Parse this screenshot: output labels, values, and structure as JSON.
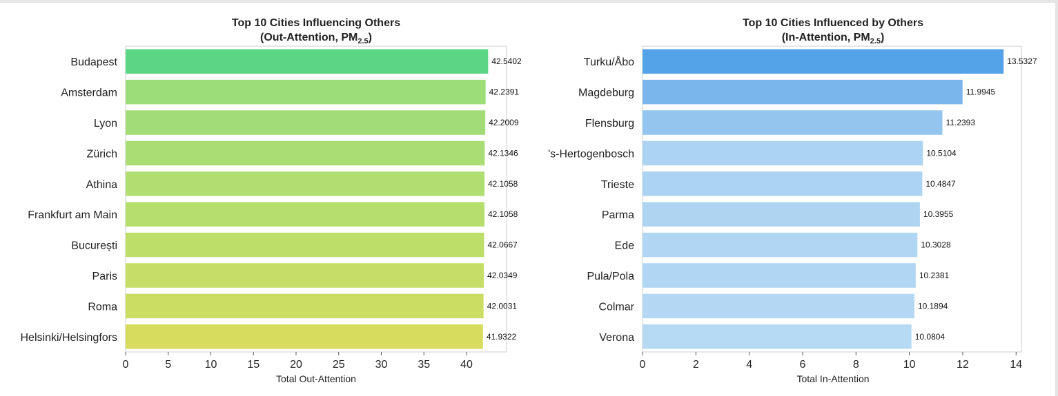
{
  "chart_data": [
    {
      "type": "bar",
      "orientation": "horizontal",
      "title": "Top 10 Cities Influencing Others",
      "subtitle_prefix": "(Out-Attention, PM",
      "subtitle_sub": "2.5",
      "subtitle_suffix": ")",
      "xlabel": "Total Out-Attention",
      "xlim": [
        0,
        44.7
      ],
      "xticks": [
        "0",
        "5",
        "10",
        "15",
        "20",
        "25",
        "30",
        "35",
        "40"
      ],
      "xtick_values": [
        0,
        5,
        10,
        15,
        20,
        25,
        30,
        35,
        40
      ],
      "grid": false,
      "categories": [
        "Budapest",
        "Amsterdam",
        "Lyon",
        "Zürich",
        "Athina",
        "Frankfurt am Main",
        "București",
        "Paris",
        "Roma",
        "Helsinki/Helsingfors"
      ],
      "values": [
        42.5402,
        42.2391,
        42.2009,
        42.1346,
        42.1058,
        42.1058,
        42.0667,
        42.0349,
        42.0031,
        41.9322
      ],
      "value_labels": [
        "42.5402",
        "42.2391",
        "42.2009",
        "42.1346",
        "42.1058",
        "42.1058",
        "42.0667",
        "42.0349",
        "42.0031",
        "41.9322"
      ],
      "colors": [
        "#5cd585",
        "#9cdc79",
        "#a2dc76",
        "#aadd73",
        "#b0de70",
        "#b6de6d",
        "#bede6a",
        "#c6de67",
        "#ccdd63",
        "#d8dc5e"
      ]
    },
    {
      "type": "bar",
      "orientation": "horizontal",
      "title": "Top 10 Cities Influenced by Others",
      "subtitle_prefix": "(In-Attention, PM",
      "subtitle_sub": "2.5",
      "subtitle_suffix": ")",
      "xlabel": "Total In-Attention",
      "xlim": [
        0,
        14.2
      ],
      "xticks": [
        "0",
        "2",
        "4",
        "6",
        "8",
        "10",
        "12",
        "14"
      ],
      "xtick_values": [
        0,
        2,
        4,
        6,
        8,
        10,
        12,
        14
      ],
      "grid": false,
      "categories": [
        "Turku/Åbo",
        "Magdeburg",
        "Flensburg",
        "'s-Hertogenbosch",
        "Trieste",
        "Parma",
        "Ede",
        "Pula/Pola",
        "Colmar",
        "Verona"
      ],
      "values": [
        13.5327,
        11.9945,
        11.2393,
        10.5104,
        10.4847,
        10.3955,
        10.3028,
        10.2381,
        10.1894,
        10.0804
      ],
      "value_labels": [
        "13.5327",
        "11.9945",
        "11.2393",
        "10.5104",
        "10.4847",
        "10.3955",
        "10.3028",
        "10.2381",
        "10.1894",
        "10.0804"
      ],
      "colors": [
        "#54a3e8",
        "#7ab6ec",
        "#93c5ef",
        "#acd3f2",
        "#acd3f2",
        "#aed4f2",
        "#b1d6f3",
        "#b1d6f3",
        "#b4d8f3",
        "#b6d9f4"
      ]
    }
  ]
}
